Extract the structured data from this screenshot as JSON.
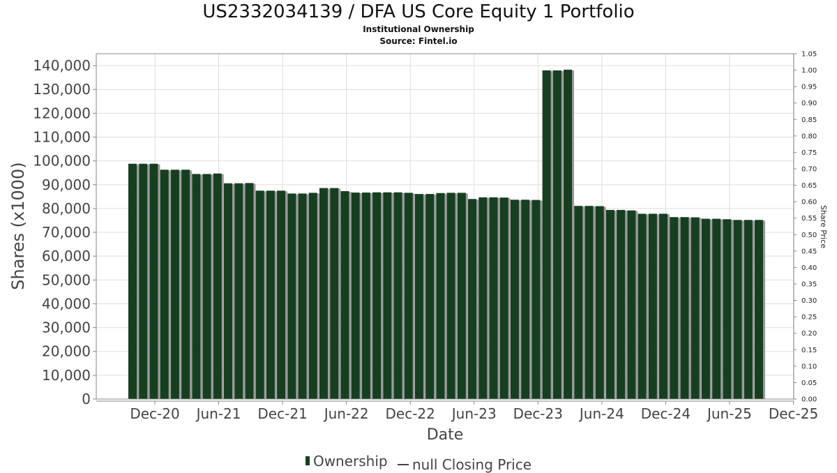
{
  "title": "US2332034139 / DFA US Core Equity 1 Portfolio",
  "subtitle": "Institutional Ownership",
  "source": "Source: Fintel.io",
  "legend": {
    "ownership": "Ownership",
    "closing_price": "null Closing Price"
  },
  "colors": {
    "bar": "#163f20",
    "bar_shadow": "#9a9a9a",
    "grid": "#dddddd",
    "axis": "#888888"
  },
  "chart_data": {
    "type": "bar",
    "title": "US2332034139 / DFA US Core Equity 1 Portfolio",
    "subtitle": "Institutional Ownership",
    "xlabel": "Date",
    "ylabel": "Shares (x1000)",
    "y2label": "Share Price",
    "ylim": [
      0,
      145000
    ],
    "y2lim": [
      0,
      1.05
    ],
    "yticks": [
      0,
      10000,
      20000,
      30000,
      40000,
      50000,
      60000,
      70000,
      80000,
      90000,
      100000,
      110000,
      120000,
      130000,
      140000
    ],
    "ytick_labels": [
      "0",
      "10,000",
      "20,000",
      "30,000",
      "40,000",
      "50,000",
      "60,000",
      "70,000",
      "80,000",
      "90,000",
      "100,000",
      "110,000",
      "120,000",
      "130,000",
      "140,000"
    ],
    "y2tick_labels": [
      "0.00",
      "0.05",
      "0.10",
      "0.15",
      "0.20",
      "0.25",
      "0.30",
      "0.35",
      "0.40",
      "0.45",
      "0.50",
      "0.55",
      "0.60",
      "0.65",
      "0.70",
      "0.75",
      "0.80",
      "0.85",
      "0.90",
      "0.95",
      "1.00",
      "1.05"
    ],
    "xtick_labels": [
      "Dec-20",
      "Jun-21",
      "Dec-21",
      "Jun-22",
      "Dec-22",
      "Jun-23",
      "Dec-23",
      "Jun-24",
      "Dec-24",
      "Jun-25",
      "Dec-25"
    ],
    "grid": true,
    "legend_position": "bottom",
    "series": [
      {
        "name": "Ownership",
        "values": [
          98800,
          98800,
          98800,
          96300,
          96300,
          96300,
          94500,
          94500,
          94700,
          90600,
          90600,
          90700,
          87500,
          87500,
          87500,
          86300,
          86300,
          86600,
          88600,
          88600,
          87300,
          86700,
          86700,
          86800,
          86800,
          86800,
          86600,
          86100,
          86100,
          86500,
          86600,
          86600,
          84000,
          84700,
          84700,
          84600,
          83700,
          83700,
          83600,
          138000,
          138000,
          138300,
          81100,
          81100,
          81000,
          79400,
          79400,
          79200,
          77800,
          77800,
          77800,
          76400,
          76400,
          76300,
          75700,
          75700,
          75500,
          75200,
          75200,
          75200
        ]
      },
      {
        "name": "null Closing Price",
        "values": []
      }
    ]
  }
}
